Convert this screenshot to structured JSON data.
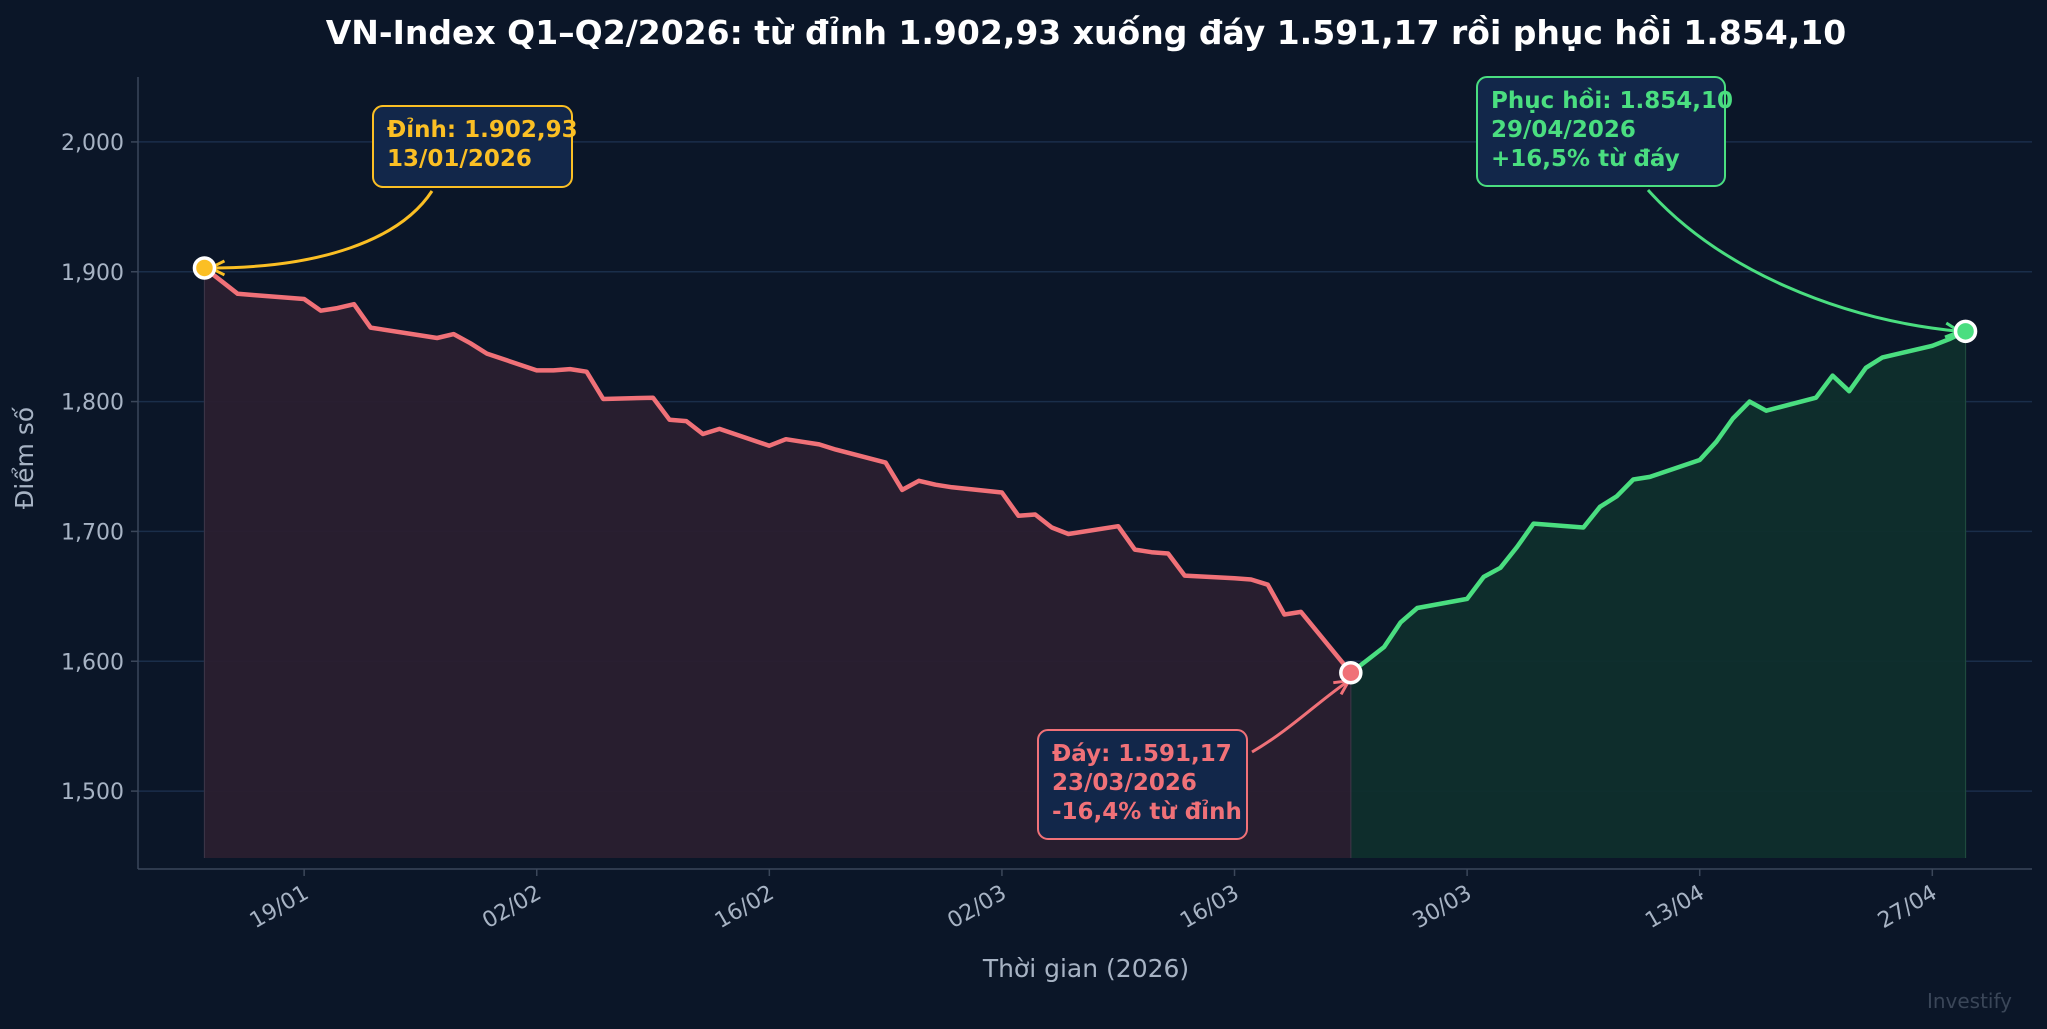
{
  "chart_data": {
    "type": "line",
    "title": "VN-Index Q1–Q2/2026: từ đỉnh 1.902,93 xuống đáy 1.591,17 rồi phục hồi 1.854,10",
    "xlabel": "Thời gian (2026)",
    "ylabel": "Điểm số",
    "ylim": [
      1440,
      2050
    ],
    "yticks": [
      1500,
      1600,
      1700,
      1800,
      1900,
      2000
    ],
    "ytick_labels": [
      "1,500",
      "1,600",
      "1,700",
      "1,800",
      "1,900",
      "2,000"
    ],
    "xlim": [
      "2026-01-09",
      "2026-05-03"
    ],
    "xticks": [
      {
        "date": "2026-01-19",
        "label": "19/01"
      },
      {
        "date": "2026-02-02",
        "label": "02/02"
      },
      {
        "date": "2026-02-16",
        "label": "16/02"
      },
      {
        "date": "2026-03-02",
        "label": "02/03"
      },
      {
        "date": "2026-03-16",
        "label": "16/03"
      },
      {
        "date": "2026-03-30",
        "label": "30/03"
      },
      {
        "date": "2026-04-13",
        "label": "13/04"
      },
      {
        "date": "2026-04-27",
        "label": "27/04"
      }
    ],
    "grid": true,
    "series": [
      {
        "segment": "decline",
        "color": "#f07178",
        "fill": "#2a1f2f",
        "points": [
          [
            "2026-01-13",
            1902.93
          ],
          [
            "2026-01-14",
            1893
          ],
          [
            "2026-01-15",
            1883
          ],
          [
            "2026-01-16",
            1882
          ],
          [
            "2026-01-19",
            1879
          ],
          [
            "2026-01-20",
            1870
          ],
          [
            "2026-01-21",
            1872
          ],
          [
            "2026-01-22",
            1875
          ],
          [
            "2026-01-23",
            1857
          ],
          [
            "2026-01-26",
            1851
          ],
          [
            "2026-01-27",
            1849
          ],
          [
            "2026-01-28",
            1852
          ],
          [
            "2026-01-29",
            1845
          ],
          [
            "2026-01-30",
            1837
          ],
          [
            "2026-02-02",
            1824
          ],
          [
            "2026-02-03",
            1824
          ],
          [
            "2026-02-04",
            1825
          ],
          [
            "2026-02-05",
            1823
          ],
          [
            "2026-02-06",
            1802
          ],
          [
            "2026-02-09",
            1803
          ],
          [
            "2026-02-10",
            1786
          ],
          [
            "2026-02-11",
            1785
          ],
          [
            "2026-02-12",
            1775
          ],
          [
            "2026-02-13",
            1779
          ],
          [
            "2026-02-16",
            1766
          ],
          [
            "2026-02-17",
            1771
          ],
          [
            "2026-02-18",
            1769
          ],
          [
            "2026-02-19",
            1767
          ],
          [
            "2026-02-20",
            1763
          ],
          [
            "2026-02-23",
            1753
          ],
          [
            "2026-02-24",
            1732
          ],
          [
            "2026-02-25",
            1739
          ],
          [
            "2026-02-26",
            1736
          ],
          [
            "2026-02-27",
            1734
          ],
          [
            "2026-03-02",
            1730
          ],
          [
            "2026-03-03",
            1712
          ],
          [
            "2026-03-04",
            1713
          ],
          [
            "2026-03-05",
            1703
          ],
          [
            "2026-03-06",
            1698
          ],
          [
            "2026-03-09",
            1704
          ],
          [
            "2026-03-10",
            1686
          ],
          [
            "2026-03-11",
            1684
          ],
          [
            "2026-03-12",
            1683
          ],
          [
            "2026-03-13",
            1666
          ],
          [
            "2026-03-16",
            1664
          ],
          [
            "2026-03-17",
            1663
          ],
          [
            "2026-03-18",
            1659
          ],
          [
            "2026-03-19",
            1636
          ],
          [
            "2026-03-20",
            1638
          ],
          [
            "2026-03-23",
            1591.17
          ]
        ]
      },
      {
        "segment": "recovery",
        "color": "#4ade80",
        "fill": "#0f2e2c",
        "points": [
          [
            "2026-03-23",
            1591.17
          ],
          [
            "2026-03-24",
            1601
          ],
          [
            "2026-03-25",
            1611
          ],
          [
            "2026-03-26",
            1630
          ],
          [
            "2026-03-27",
            1641
          ],
          [
            "2026-03-30",
            1648
          ],
          [
            "2026-03-31",
            1665
          ],
          [
            "2026-04-01",
            1672
          ],
          [
            "2026-04-02",
            1688
          ],
          [
            "2026-04-03",
            1706
          ],
          [
            "2026-04-06",
            1703
          ],
          [
            "2026-04-07",
            1719
          ],
          [
            "2026-04-08",
            1727
          ],
          [
            "2026-04-09",
            1740
          ],
          [
            "2026-04-10",
            1742
          ],
          [
            "2026-04-13",
            1755
          ],
          [
            "2026-04-14",
            1769
          ],
          [
            "2026-04-15",
            1787
          ],
          [
            "2026-04-16",
            1800
          ],
          [
            "2026-04-17",
            1793
          ],
          [
            "2026-04-20",
            1803
          ],
          [
            "2026-04-21",
            1820
          ],
          [
            "2026-04-22",
            1808
          ],
          [
            "2026-04-23",
            1826
          ],
          [
            "2026-04-24",
            1834
          ],
          [
            "2026-04-27",
            1843
          ],
          [
            "2026-04-28",
            1848
          ],
          [
            "2026-04-29",
            1854.1
          ]
        ]
      }
    ],
    "annotations": [
      {
        "name": "peak",
        "date": "2026-01-13",
        "value": 1902.93,
        "color": "#fbbf24",
        "lines": [
          "Đỉnh: 1.902,93",
          "13/01/2026"
        ]
      },
      {
        "name": "trough",
        "date": "2026-03-23",
        "value": 1591.17,
        "color": "#f07178",
        "lines": [
          "Đáy: 1.591,17",
          "23/03/2026",
          "-16,4% từ đỉnh"
        ]
      },
      {
        "name": "recovery",
        "date": "2026-04-29",
        "value": 1854.1,
        "color": "#4ade80",
        "lines": [
          "Phục hồi: 1.854,10",
          "29/04/2026",
          "+16,5% từ đáy"
        ]
      }
    ],
    "watermark": "Investify"
  }
}
